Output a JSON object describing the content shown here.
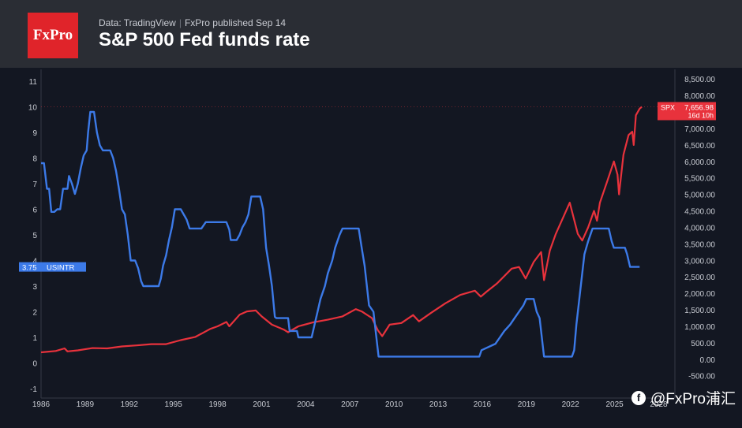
{
  "header": {
    "logo_text": "FxPro",
    "data_source": "Data: TradingView",
    "published": "FxPro published Sep 14",
    "title": "S&P 500 Fed funds rate"
  },
  "watermark": {
    "icon": "wechat-icon",
    "text": "@FxPro浦汇"
  },
  "colors": {
    "rate": "#3c7ae8",
    "spx": "#e8323c",
    "background": "#131722",
    "header": "#2a2d34"
  },
  "chart_data": {
    "type": "line",
    "title": "S&P 500 Fed funds rate",
    "x_ticks": [
      "1986",
      "1989",
      "1992",
      "1995",
      "1998",
      "2001",
      "2004",
      "2007",
      "2010",
      "2013",
      "2016",
      "2019",
      "2022",
      "2025",
      "2028"
    ],
    "x_range": [
      1986,
      2029.1
    ],
    "left_axis": {
      "ticks": [
        "-1",
        "0",
        "1",
        "2",
        "3",
        "4",
        "5",
        "6",
        "7",
        "8",
        "9",
        "10",
        "11"
      ],
      "range": [
        -1,
        11
      ]
    },
    "right_axis": {
      "ticks": [
        "-500.00",
        "0.00",
        "500.00",
        "1,000.00",
        "1,500.00",
        "2,000.00",
        "2,500.00",
        "3,000.00",
        "3,500.00",
        "4,000.00",
        "4,500.00",
        "5,000.00",
        "5,500.00",
        "6,000.00",
        "6,500.00",
        "7,000.00",
        "7,500.00",
        "8,000.00",
        "8,500.00"
      ],
      "range": [
        -500,
        8500
      ]
    },
    "grid": false,
    "series": [
      {
        "name": "USINTR",
        "axis": "left",
        "last_value_label": "3.75",
        "points": [
          [
            1986.0,
            7.8
          ],
          [
            1986.2,
            7.8
          ],
          [
            1986.4,
            6.8
          ],
          [
            1986.55,
            6.8
          ],
          [
            1986.7,
            5.9
          ],
          [
            1986.9,
            5.9
          ],
          [
            1987.1,
            6.0
          ],
          [
            1987.3,
            6.0
          ],
          [
            1987.5,
            6.8
          ],
          [
            1987.8,
            6.8
          ],
          [
            1987.9,
            7.3
          ],
          [
            1988.1,
            7.0
          ],
          [
            1988.3,
            6.6
          ],
          [
            1988.5,
            7.0
          ],
          [
            1988.7,
            7.6
          ],
          [
            1988.9,
            8.1
          ],
          [
            1989.1,
            8.3
          ],
          [
            1989.2,
            9.0
          ],
          [
            1989.35,
            9.8
          ],
          [
            1989.6,
            9.8
          ],
          [
            1989.8,
            9.0
          ],
          [
            1990.0,
            8.5
          ],
          [
            1990.2,
            8.3
          ],
          [
            1990.7,
            8.3
          ],
          [
            1990.9,
            8.0
          ],
          [
            1991.1,
            7.5
          ],
          [
            1991.3,
            6.8
          ],
          [
            1991.5,
            6.0
          ],
          [
            1991.7,
            5.8
          ],
          [
            1991.9,
            5.0
          ],
          [
            1992.1,
            4.0
          ],
          [
            1992.4,
            4.0
          ],
          [
            1992.6,
            3.7
          ],
          [
            1992.8,
            3.2
          ],
          [
            1992.95,
            3.0
          ],
          [
            1993.0,
            3.0
          ],
          [
            1993.5,
            3.0
          ],
          [
            1994.0,
            3.0
          ],
          [
            1994.15,
            3.3
          ],
          [
            1994.3,
            3.8
          ],
          [
            1994.5,
            4.2
          ],
          [
            1994.7,
            4.8
          ],
          [
            1994.9,
            5.3
          ],
          [
            1995.1,
            6.0
          ],
          [
            1995.5,
            6.0
          ],
          [
            1995.7,
            5.8
          ],
          [
            1995.9,
            5.6
          ],
          [
            1996.1,
            5.25
          ],
          [
            1996.5,
            5.25
          ],
          [
            1996.9,
            5.25
          ],
          [
            1997.2,
            5.5
          ],
          [
            1997.5,
            5.5
          ],
          [
            1998.0,
            5.5
          ],
          [
            1998.6,
            5.5
          ],
          [
            1998.8,
            5.2
          ],
          [
            1998.9,
            4.8
          ],
          [
            1999.3,
            4.8
          ],
          [
            1999.5,
            5.0
          ],
          [
            1999.7,
            5.3
          ],
          [
            1999.9,
            5.5
          ],
          [
            2000.1,
            5.8
          ],
          [
            2000.3,
            6.5
          ],
          [
            2000.9,
            6.5
          ],
          [
            2001.1,
            6.0
          ],
          [
            2001.3,
            4.5
          ],
          [
            2001.5,
            3.8
          ],
          [
            2001.7,
            3.0
          ],
          [
            2001.9,
            1.8
          ],
          [
            2002.0,
            1.75
          ],
          [
            2002.8,
            1.75
          ],
          [
            2002.9,
            1.25
          ],
          [
            2003.4,
            1.25
          ],
          [
            2003.5,
            1.0
          ],
          [
            2004.4,
            1.0
          ],
          [
            2004.6,
            1.5
          ],
          [
            2004.8,
            2.0
          ],
          [
            2005.0,
            2.5
          ],
          [
            2005.3,
            3.0
          ],
          [
            2005.5,
            3.5
          ],
          [
            2005.8,
            4.0
          ],
          [
            2006.0,
            4.5
          ],
          [
            2006.3,
            5.0
          ],
          [
            2006.5,
            5.25
          ],
          [
            2007.6,
            5.25
          ],
          [
            2007.8,
            4.5
          ],
          [
            2008.0,
            3.8
          ],
          [
            2008.3,
            2.25
          ],
          [
            2008.6,
            2.0
          ],
          [
            2008.8,
            1.0
          ],
          [
            2008.95,
            0.25
          ],
          [
            2009.5,
            0.25
          ],
          [
            2012.0,
            0.25
          ],
          [
            2015.8,
            0.25
          ],
          [
            2015.95,
            0.5
          ],
          [
            2016.9,
            0.75
          ],
          [
            2017.2,
            1.0
          ],
          [
            2017.5,
            1.25
          ],
          [
            2017.9,
            1.5
          ],
          [
            2018.2,
            1.75
          ],
          [
            2018.5,
            2.0
          ],
          [
            2018.8,
            2.25
          ],
          [
            2019.0,
            2.5
          ],
          [
            2019.5,
            2.5
          ],
          [
            2019.7,
            2.0
          ],
          [
            2019.9,
            1.75
          ],
          [
            2020.2,
            0.25
          ],
          [
            2022.1,
            0.25
          ],
          [
            2022.25,
            0.5
          ],
          [
            2022.4,
            1.5
          ],
          [
            2022.6,
            2.5
          ],
          [
            2022.8,
            3.5
          ],
          [
            2022.95,
            4.25
          ],
          [
            2023.2,
            4.75
          ],
          [
            2023.5,
            5.25
          ],
          [
            2024.6,
            5.25
          ],
          [
            2024.8,
            4.75
          ],
          [
            2024.95,
            4.5
          ],
          [
            2025.7,
            4.5
          ],
          [
            2025.85,
            4.25
          ],
          [
            2025.95,
            4.0
          ],
          [
            2026.05,
            3.75
          ],
          [
            2026.7,
            3.75
          ]
        ]
      },
      {
        "name": "SPX",
        "axis": "right",
        "last_value_label": "7,656.98",
        "countdown_label": "16d 10h",
        "points": [
          [
            1986.0,
            210
          ],
          [
            1987.0,
            250
          ],
          [
            1987.6,
            330
          ],
          [
            1987.8,
            240
          ],
          [
            1988.5,
            270
          ],
          [
            1989.5,
            340
          ],
          [
            1990.5,
            330
          ],
          [
            1991.5,
            390
          ],
          [
            1992.5,
            420
          ],
          [
            1993.5,
            460
          ],
          [
            1994.5,
            460
          ],
          [
            1995.5,
            580
          ],
          [
            1996.5,
            680
          ],
          [
            1997.5,
            920
          ],
          [
            1998.0,
            1000
          ],
          [
            1998.6,
            1130
          ],
          [
            1998.8,
            1000
          ],
          [
            1999.5,
            1350
          ],
          [
            2000.0,
            1450
          ],
          [
            2000.6,
            1480
          ],
          [
            2001.0,
            1300
          ],
          [
            2001.7,
            1050
          ],
          [
            2002.5,
            900
          ],
          [
            2002.8,
            820
          ],
          [
            2003.5,
            1000
          ],
          [
            2004.5,
            1120
          ],
          [
            2005.5,
            1200
          ],
          [
            2006.5,
            1300
          ],
          [
            2007.4,
            1520
          ],
          [
            2007.8,
            1450
          ],
          [
            2008.5,
            1250
          ],
          [
            2008.9,
            880
          ],
          [
            2009.2,
            700
          ],
          [
            2009.7,
            1050
          ],
          [
            2010.5,
            1100
          ],
          [
            2011.3,
            1340
          ],
          [
            2011.7,
            1150
          ],
          [
            2012.5,
            1400
          ],
          [
            2013.5,
            1700
          ],
          [
            2014.5,
            1950
          ],
          [
            2015.5,
            2080
          ],
          [
            2015.9,
            1900
          ],
          [
            2016.3,
            2050
          ],
          [
            2017.0,
            2300
          ],
          [
            2018.0,
            2750
          ],
          [
            2018.5,
            2800
          ],
          [
            2018.95,
            2450
          ],
          [
            2019.5,
            2950
          ],
          [
            2020.0,
            3250
          ],
          [
            2020.2,
            2400
          ],
          [
            2020.6,
            3300
          ],
          [
            2021.0,
            3800
          ],
          [
            2021.5,
            4300
          ],
          [
            2021.95,
            4750
          ],
          [
            2022.5,
            3800
          ],
          [
            2022.8,
            3600
          ],
          [
            2023.2,
            4000
          ],
          [
            2023.6,
            4500
          ],
          [
            2023.8,
            4200
          ],
          [
            2024.0,
            4750
          ],
          [
            2024.5,
            5400
          ],
          [
            2024.95,
            6000
          ],
          [
            2025.2,
            5600
          ],
          [
            2025.3,
            5000
          ],
          [
            2025.6,
            6200
          ],
          [
            2025.95,
            6800
          ],
          [
            2026.2,
            6900
          ],
          [
            2026.3,
            6500
          ],
          [
            2026.45,
            7400
          ],
          [
            2026.7,
            7600
          ],
          [
            2026.85,
            7656.98
          ]
        ]
      }
    ]
  }
}
